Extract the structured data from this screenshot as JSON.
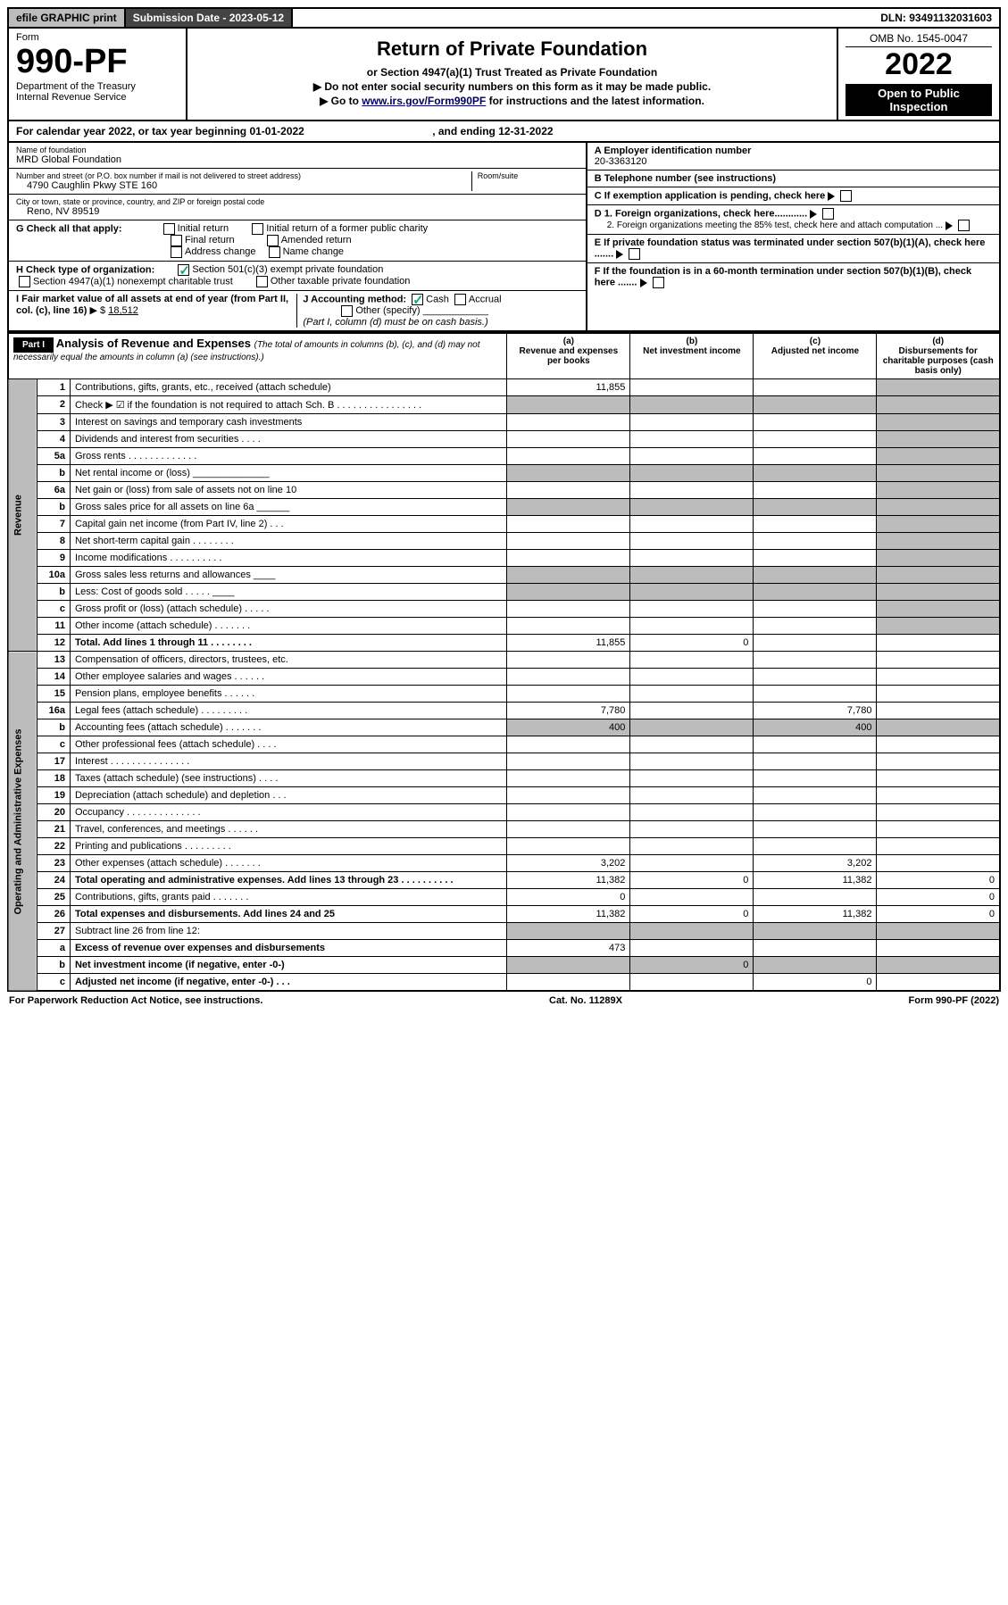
{
  "top": {
    "efile": "efile GRAPHIC print",
    "sub_lbl": "Submission Date - ",
    "sub_date": "2023-05-12",
    "dln_lbl": "DLN: ",
    "dln": "93491132031603"
  },
  "header": {
    "form": "Form",
    "num": "990-PF",
    "dept": "Department of the Treasury",
    "irs": "Internal Revenue Service",
    "title": "Return of Private Foundation",
    "sub": "or Section 4947(a)(1) Trust Treated as Private Foundation",
    "note1": "Do not enter social security numbers on this form as it may be made public.",
    "note1_pre": "▶ ",
    "note2_pre": "▶ Go to ",
    "note2_link": "www.irs.gov/Form990PF",
    "note2_post": " for instructions and the latest information.",
    "omb_lbl": "OMB No. ",
    "omb": "1545-0047",
    "year": "2022",
    "inspect": "Open to Public Inspection"
  },
  "cal": {
    "pre": "For calendar year 2022, or tax year beginning ",
    "begin": "01-01-2022",
    "mid": ", and ending ",
    "end": "12-31-2022"
  },
  "info_l": {
    "name_lbl": "Name of foundation",
    "name": "MRD Global Foundation",
    "addr_lbl": "Number and street (or P.O. box number if mail is not delivered to street address)",
    "room_lbl": "Room/suite",
    "addr": "4790 Caughlin Pkwy STE 160",
    "city_lbl": "City or town, state or province, country, and ZIP or foreign postal code",
    "city": "Reno, NV  89519",
    "g": "G Check all that apply:",
    "g1": "Initial return",
    "g2": "Initial return of a former public charity",
    "g3": "Final return",
    "g4": "Amended return",
    "g5": "Address change",
    "g6": "Name change",
    "h": "H Check type of organization:",
    "h1": "Section 501(c)(3) exempt private foundation",
    "h2": "Section 4947(a)(1) nonexempt charitable trust",
    "h3": "Other taxable private foundation",
    "i": "I Fair market value of all assets at end of year (from Part II, col. (c), line 16) ",
    "i_val": "18,512",
    "i_pre": "▶ $ ",
    "j": "J Accounting method:",
    "j1": "Cash",
    "j2": "Accrual",
    "j3": "Other (specify)",
    "j_note": "(Part I, column (d) must be on cash basis.)"
  },
  "info_r": {
    "a_lbl": "A Employer identification number",
    "a": "20-3363120",
    "b_lbl": "B Telephone number (see instructions)",
    "c": "C If exemption application is pending, check here",
    "d1": "D 1. Foreign organizations, check here............",
    "d2": "2. Foreign organizations meeting the 85% test, check here and attach computation ...",
    "e": "E If private foundation status was terminated under section 507(b)(1)(A), check here .......",
    "f": "F If the foundation is in a 60-month termination under section 507(b)(1)(B), check here ......."
  },
  "p1": {
    "part": "Part I",
    "title": "Analysis of Revenue and Expenses ",
    "title_note": "(The total of amounts in columns (b), (c), and (d) may not necessarily equal the amounts in column (a) (see instructions).)",
    "ca": "(a)",
    "ca2": "Revenue and expenses per books",
    "cb": "(b)",
    "cb2": "Net investment income",
    "cc": "(c)",
    "cc2": "Adjusted net income",
    "cd": "(d)",
    "cd2": "Disbursements for charitable purposes (cash basis only)",
    "rev": "Revenue",
    "exp": "Operating and Administrative Expenses"
  },
  "rows": [
    {
      "n": "1",
      "d": "Contributions, gifts, grants, etc., received (attach schedule)",
      "a": "11,855"
    },
    {
      "n": "2",
      "d": "Check ▶ ☑ if the foundation is not required to attach Sch. B   .  .  .  .  .  .  .  .  .  .  .  .  .  .  .  ."
    },
    {
      "n": "3",
      "d": "Interest on savings and temporary cash investments"
    },
    {
      "n": "4",
      "d": "Dividends and interest from securities   .  .  .  ."
    },
    {
      "n": "5a",
      "d": "Gross rents   .  .  .  .  .  .  .  .  .  .  .  .  ."
    },
    {
      "n": "b",
      "d": "Net rental income or (loss) ______________"
    },
    {
      "n": "6a",
      "d": "Net gain or (loss) from sale of assets not on line 10"
    },
    {
      "n": "b",
      "d": "Gross sales price for all assets on line 6a ______"
    },
    {
      "n": "7",
      "d": "Capital gain net income (from Part IV, line 2)   .  .  ."
    },
    {
      "n": "8",
      "d": "Net short-term capital gain   .  .  .  .  .  .  .  ."
    },
    {
      "n": "9",
      "d": "Income modifications   .  .  .  .  .  .  .  .  .  ."
    },
    {
      "n": "10a",
      "d": "Gross sales less returns and allowances ____"
    },
    {
      "n": "b",
      "d": "Less: Cost of goods sold   .  .  .  .  . ____"
    },
    {
      "n": "c",
      "d": "Gross profit or (loss) (attach schedule)   .  .  .  .  ."
    },
    {
      "n": "11",
      "d": "Other income (attach schedule)   .  .  .  .  .  .  ."
    },
    {
      "n": "12",
      "d": "Total. Add lines 1 through 11   .  .  .  .  .  .  .  .",
      "b": true,
      "a": "11,855",
      "bv": "0"
    },
    {
      "n": "13",
      "d": "Compensation of officers, directors, trustees, etc."
    },
    {
      "n": "14",
      "d": "Other employee salaries and wages   .  .  .  .  .  ."
    },
    {
      "n": "15",
      "d": "Pension plans, employee benefits   .  .  .  .  .  ."
    },
    {
      "n": "16a",
      "d": "Legal fees (attach schedule)  .  .  .  .  .  .  .  .  .",
      "a": "7,780",
      "cv": "7,780"
    },
    {
      "n": "b",
      "d": "Accounting fees (attach schedule)   .  .  .  .  .  .  .",
      "a": "400",
      "cv": "400"
    },
    {
      "n": "c",
      "d": "Other professional fees (attach schedule)   .  .  .  ."
    },
    {
      "n": "17",
      "d": "Interest   .  .  .  .  .  .  .  .  .  .  .  .  .  .  ."
    },
    {
      "n": "18",
      "d": "Taxes (attach schedule) (see instructions)   .  .  .  ."
    },
    {
      "n": "19",
      "d": "Depreciation (attach schedule) and depletion   .  .  ."
    },
    {
      "n": "20",
      "d": "Occupancy   .  .  .  .  .  .  .  .  .  .  .  .  .  ."
    },
    {
      "n": "21",
      "d": "Travel, conferences, and meetings   .  .  .  .  .  ."
    },
    {
      "n": "22",
      "d": "Printing and publications   .  .  .  .  .  .  .  .  ."
    },
    {
      "n": "23",
      "d": "Other expenses (attach schedule)   .  .  .  .  .  .  .",
      "a": "3,202",
      "cv": "3,202"
    },
    {
      "n": "24",
      "d": "Total operating and administrative expenses. Add lines 13 through 23   .  .  .  .  .  .  .  .  .  .",
      "b": true,
      "a": "11,382",
      "bv": "0",
      "cv": "11,382",
      "dv": "0"
    },
    {
      "n": "25",
      "d": "Contributions, gifts, grants paid   .  .  .  .  .  .  .",
      "a": "0",
      "dv": "0"
    },
    {
      "n": "26",
      "d": "Total expenses and disbursements. Add lines 24 and 25",
      "b": true,
      "a": "11,382",
      "bv": "0",
      "cv": "11,382",
      "dv": "0"
    },
    {
      "n": "27",
      "d": "Subtract line 26 from line 12:"
    },
    {
      "n": "a",
      "d": "Excess of revenue over expenses and disbursements",
      "b": true,
      "a": "473"
    },
    {
      "n": "b",
      "d": "Net investment income (if negative, enter -0-)",
      "b": true,
      "bv": "0"
    },
    {
      "n": "c",
      "d": "Adjusted net income (if negative, enter -0-)   .  .  .",
      "b": true,
      "cv": "0"
    }
  ],
  "foot": {
    "l": "For Paperwork Reduction Act Notice, see instructions.",
    "c": "Cat. No. 11289X",
    "r": "Form 990-PF (2022)"
  }
}
